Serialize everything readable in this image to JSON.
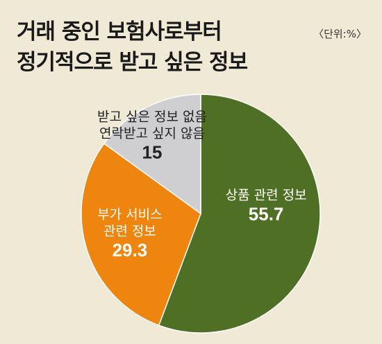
{
  "header": {
    "title_line1": "거래 중인 보험사로부터",
    "title_line2": "정기적으로 받고 싶은 정보",
    "unit": "〈단위:%〉"
  },
  "chart_data": {
    "type": "pie",
    "title": "거래 중인 보험사로부터 정기적으로 받고 싶은 정보",
    "unit": "〈단위:%〉",
    "slices": [
      {
        "label_lines": [
          "상품 관련 정보"
        ],
        "value": 55.7,
        "value_text": "55.7",
        "color": "#4f7024",
        "text_color": "#ffffff"
      },
      {
        "label_lines": [
          "부가 서비스",
          "관련 정보"
        ],
        "value": 29.3,
        "value_text": "29.3",
        "color": "#ee850f",
        "text_color": "#ffffff"
      },
      {
        "label_lines": [
          "받고 싶은 정보 없음",
          "연락받고 싶지 않음"
        ],
        "value": 15,
        "value_text": "15",
        "color": "#cfcfd1",
        "text_color": "#222222"
      }
    ],
    "start": "12 o'clock",
    "direction": "clockwise",
    "legend": "none"
  }
}
